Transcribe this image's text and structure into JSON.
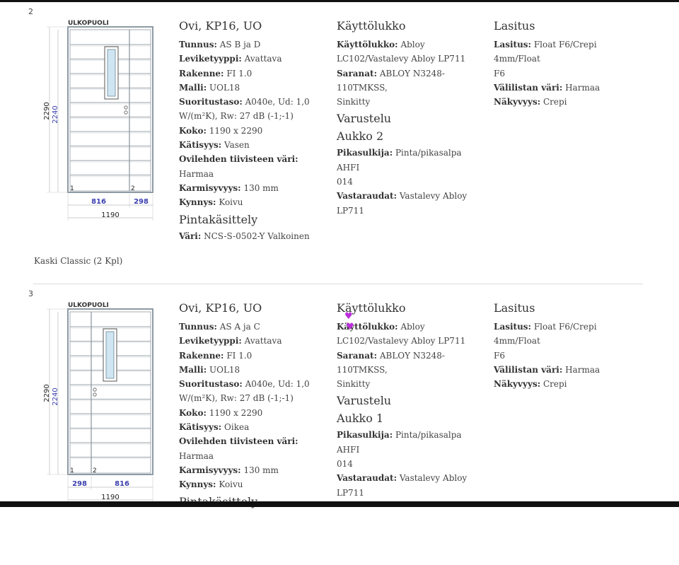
{
  "items": [
    {
      "number": "2",
      "drawing": {
        "exterior_label": "ULKOPUOLI",
        "height_outer": "2290",
        "height_inner": "2240",
        "width_left": "816",
        "width_right": "298",
        "width_total": "1190",
        "leaf_left_label": "1",
        "leaf_right_label": "2",
        "main_leaf": "left"
      },
      "title": "Ovi, KP16, UO",
      "fields": [
        {
          "label": "Tunnus:",
          "value": "AS B ja D"
        },
        {
          "label": "Leviketyyppi:",
          "value": "Avattava"
        },
        {
          "label": "Rakenne:",
          "value": "FI 1.0"
        },
        {
          "label": "Malli:",
          "value": "UOL18"
        },
        {
          "label": "Suoritustaso:",
          "value": "A040e, Ud: 1,0"
        },
        {
          "label": "",
          "value": "W/(m²K), Rw: 27 dB (-1;-1)"
        },
        {
          "label": "Koko:",
          "value": "1190 x 2290"
        },
        {
          "label": "Kätisyys:",
          "value": "Vasen"
        },
        {
          "label": "Ovilehden tiivisteen väri:",
          "value": "Harmaa"
        },
        {
          "label": "Karmisyvyys:",
          "value": "130 mm"
        },
        {
          "label": "Kynnys:",
          "value": "Koivu"
        }
      ],
      "surface_heading": "Pintakäsittely",
      "surface_fields": [
        {
          "label": "Väri:",
          "value": "NCS-S-0502-Y Valkoinen"
        }
      ],
      "lock_heading": "Käyttölukko",
      "lock_fields": [
        {
          "label": "Käyttölukko:",
          "value": "Abloy"
        },
        {
          "label": "",
          "value": "LC102/Vastalevy Abloy LP711"
        },
        {
          "label": "Saranat:",
          "value": "ABLOY N3248-110TMKSS,"
        },
        {
          "label": "",
          "value": "Sinkitty"
        }
      ],
      "equipment_heading": "Varustelu",
      "opening_heading": "Aukko 2",
      "opening_fields": [
        {
          "label": "Pikasulkija:",
          "value": "Pinta/pikasalpa AHFI"
        },
        {
          "label": "",
          "value": "014"
        },
        {
          "label": "Vastaraudat:",
          "value": "Vastalevy Abloy"
        },
        {
          "label": "",
          "value": "LP711"
        }
      ],
      "glazing_heading": "Lasitus",
      "glazing_fields": [
        {
          "label": "Lasitus:",
          "value": "Float F6/Crepi 4mm/Float"
        },
        {
          "label": "",
          "value": "F6"
        },
        {
          "label": "Välilistan väri:",
          "value": "Harmaa"
        },
        {
          "label": "Näkyvyys:",
          "value": "Crepi"
        }
      ],
      "caption": "Kaski Classic (2 Kpl)"
    },
    {
      "number": "3",
      "drawing": {
        "exterior_label": "ULKOPUOLI",
        "height_outer": "2290",
        "height_inner": "2240",
        "width_left": "298",
        "width_right": "816",
        "width_total": "1190",
        "leaf_left_label": "1",
        "leaf_right_label": "2",
        "main_leaf": "right"
      },
      "title": "Ovi, KP16, UO",
      "fields": [
        {
          "label": "Tunnus:",
          "value": "AS A ja C"
        },
        {
          "label": "Leviketyyppi:",
          "value": "Avattava"
        },
        {
          "label": "Rakenne:",
          "value": "FI 1.0"
        },
        {
          "label": "Malli:",
          "value": "UOL18"
        },
        {
          "label": "Suoritustaso:",
          "value": "A040e, Ud: 1,0"
        },
        {
          "label": "",
          "value": "W/(m²K), Rw: 27 dB (-1;-1)"
        },
        {
          "label": "Koko:",
          "value": "1190 x 2290"
        },
        {
          "label": "Kätisyys:",
          "value": "Oikea"
        },
        {
          "label": "Ovilehden tiivisteen väri:",
          "value": "Harmaa"
        },
        {
          "label": "Karmisyvyys:",
          "value": "130 mm"
        },
        {
          "label": "Kynnys:",
          "value": "Koivu"
        }
      ],
      "surface_heading": "Pintakäsittely",
      "surface_fields": [],
      "lock_heading": "Käyttölukko",
      "lock_fields": [
        {
          "label": "Käyttölukko:",
          "value": "Abloy"
        },
        {
          "label": "",
          "value": "LC102/Vastalevy Abloy LP711"
        },
        {
          "label": "Saranat:",
          "value": "ABLOY N3248-110TMKSS,"
        },
        {
          "label": "",
          "value": "Sinkitty"
        }
      ],
      "equipment_heading": "Varustelu",
      "opening_heading": "Aukko 1",
      "opening_fields": [
        {
          "label": "Pikasulkija:",
          "value": "Pinta/pikasalpa AHFI"
        },
        {
          "label": "",
          "value": "014"
        },
        {
          "label": "Vastaraudat:",
          "value": "Vastalevy Abloy"
        },
        {
          "label": "",
          "value": "LP711"
        }
      ],
      "glazing_heading": "Lasitus",
      "glazing_fields": [
        {
          "label": "Lasitus:",
          "value": "Float F6/Crepi 4mm/Float"
        },
        {
          "label": "",
          "value": "F6"
        },
        {
          "label": "Välilistan väri:",
          "value": "Harmaa"
        },
        {
          "label": "Näkyvyys:",
          "value": "Crepi"
        }
      ],
      "caption": ""
    }
  ],
  "colors": {
    "frame": "#8e9aa3",
    "board_line": "#9aa3aa",
    "glass": "#cfe6f2",
    "dimension_text": "#3b3fae",
    "annotation_mark": "#b92fd8"
  }
}
